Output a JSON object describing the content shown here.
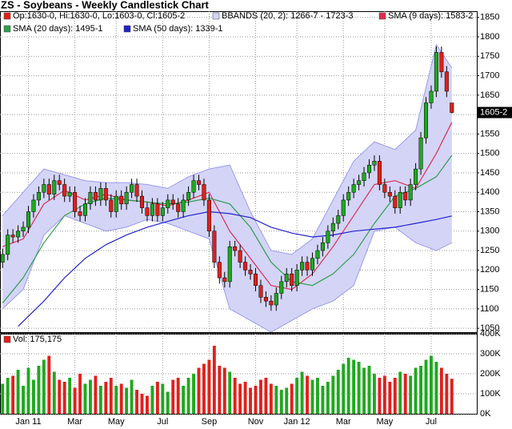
{
  "chart_data": [
    {
      "type": "candlestick",
      "title": "ZS - Soybeans - Weekly Candlestick Chart",
      "legend_ohlc": "Op:1630-0, Hi:1630-0, Lo:1603-0, Cl:1605-2",
      "legend_color": "#e0201b",
      "last_label": "1605-2",
      "up_color": "#1fa81f",
      "down_color": "#e0201b",
      "ylim": [
        1040,
        1866
      ],
      "yticks": [
        1050,
        1100,
        1150,
        1200,
        1250,
        1300,
        1350,
        1400,
        1450,
        1500,
        1550,
        1600,
        1650,
        1700,
        1750,
        1800,
        1850
      ],
      "grid": true,
      "open": [
        1220,
        1240,
        1290,
        1285,
        1300,
        1310,
        1350,
        1380,
        1400,
        1420,
        1395,
        1430,
        1420,
        1390,
        1400,
        1350,
        1340,
        1370,
        1400,
        1380,
        1410,
        1380,
        1350,
        1390,
        1370,
        1400,
        1420,
        1390,
        1360,
        1340,
        1370,
        1340,
        1360,
        1380,
        1370,
        1350,
        1380,
        1400,
        1430,
        1420,
        1380,
        1300,
        1220,
        1180,
        1170,
        1260,
        1250,
        1220,
        1200,
        1190,
        1160,
        1130,
        1120,
        1110,
        1140,
        1170,
        1190,
        1160,
        1200,
        1220,
        1200,
        1230,
        1250,
        1270,
        1300,
        1320,
        1340,
        1380,
        1400,
        1420,
        1430,
        1450,
        1470,
        1480,
        1420,
        1400,
        1390,
        1360,
        1400,
        1380,
        1420,
        1460,
        1540,
        1630,
        1660,
        1760,
        1710,
        1630
      ],
      "high": [
        1255,
        1305,
        1305,
        1315,
        1325,
        1365,
        1395,
        1415,
        1435,
        1435,
        1445,
        1445,
        1435,
        1415,
        1415,
        1365,
        1385,
        1415,
        1415,
        1425,
        1425,
        1395,
        1405,
        1405,
        1415,
        1435,
        1435,
        1405,
        1375,
        1385,
        1385,
        1375,
        1395,
        1395,
        1385,
        1395,
        1415,
        1445,
        1445,
        1435,
        1395,
        1315,
        1235,
        1195,
        1275,
        1275,
        1265,
        1235,
        1215,
        1205,
        1175,
        1145,
        1135,
        1155,
        1185,
        1205,
        1205,
        1215,
        1235,
        1235,
        1245,
        1265,
        1285,
        1315,
        1335,
        1355,
        1395,
        1415,
        1435,
        1445,
        1465,
        1485,
        1495,
        1495,
        1435,
        1415,
        1405,
        1415,
        1415,
        1435,
        1475,
        1555,
        1645,
        1675,
        1775,
        1775,
        1725,
        1630
      ],
      "low": [
        1205,
        1225,
        1270,
        1270,
        1285,
        1295,
        1335,
        1365,
        1385,
        1380,
        1380,
        1405,
        1375,
        1375,
        1335,
        1325,
        1325,
        1355,
        1365,
        1365,
        1365,
        1335,
        1335,
        1355,
        1355,
        1385,
        1375,
        1345,
        1325,
        1325,
        1325,
        1325,
        1345,
        1355,
        1335,
        1335,
        1365,
        1385,
        1405,
        1365,
        1285,
        1205,
        1165,
        1155,
        1155,
        1235,
        1205,
        1185,
        1175,
        1145,
        1115,
        1105,
        1095,
        1095,
        1125,
        1155,
        1145,
        1145,
        1185,
        1185,
        1185,
        1215,
        1235,
        1255,
        1285,
        1305,
        1325,
        1365,
        1385,
        1405,
        1415,
        1435,
        1455,
        1405,
        1385,
        1375,
        1345,
        1345,
        1365,
        1365,
        1405,
        1445,
        1525,
        1615,
        1645,
        1695,
        1645,
        1603
      ],
      "close": [
        1240,
        1290,
        1285,
        1300,
        1310,
        1350,
        1380,
        1400,
        1420,
        1395,
        1430,
        1420,
        1390,
        1400,
        1350,
        1340,
        1370,
        1400,
        1380,
        1410,
        1380,
        1350,
        1390,
        1370,
        1400,
        1420,
        1390,
        1360,
        1340,
        1370,
        1340,
        1360,
        1380,
        1370,
        1350,
        1380,
        1400,
        1430,
        1420,
        1380,
        1300,
        1220,
        1180,
        1170,
        1260,
        1250,
        1220,
        1200,
        1190,
        1160,
        1130,
        1120,
        1110,
        1140,
        1170,
        1190,
        1160,
        1200,
        1220,
        1200,
        1230,
        1250,
        1270,
        1300,
        1320,
        1340,
        1380,
        1400,
        1420,
        1430,
        1450,
        1470,
        1480,
        1420,
        1400,
        1390,
        1360,
        1400,
        1380,
        1420,
        1460,
        1540,
        1630,
        1660,
        1760,
        1710,
        1660,
        1605.25
      ],
      "bands": {
        "name": "BBANDS (20, 2): 1266-7 - 1723-3",
        "color": "#9a9aec",
        "fill": "#d4d4f7",
        "x": [
          0,
          4,
          8,
          12,
          16,
          20,
          24,
          28,
          32,
          36,
          40,
          44,
          48,
          52,
          56,
          60,
          64,
          68,
          72,
          76,
          80,
          84,
          87
        ],
        "upper": [
          1340,
          1400,
          1460,
          1445,
          1430,
          1425,
          1425,
          1420,
          1410,
          1440,
          1460,
          1470,
          1350,
          1250,
          1240,
          1280,
          1380,
          1480,
          1530,
          1510,
          1560,
          1780,
          1720
        ],
        "lower": [
          1100,
          1150,
          1290,
          1340,
          1320,
          1300,
          1310,
          1330,
          1320,
          1300,
          1280,
          1100,
          1070,
          1040,
          1070,
          1100,
          1120,
          1160,
          1300,
          1310,
          1270,
          1250,
          1270
        ]
      },
      "overlays": [
        {
          "name": "SMA (9 days): 1583-2",
          "color": "#d9304f",
          "x": [
            0,
            4,
            8,
            12,
            16,
            20,
            24,
            28,
            32,
            36,
            40,
            44,
            48,
            52,
            56,
            60,
            64,
            68,
            72,
            76,
            80,
            84,
            87
          ],
          "values": [
            1260,
            1280,
            1370,
            1405,
            1380,
            1395,
            1380,
            1375,
            1365,
            1380,
            1400,
            1300,
            1230,
            1160,
            1150,
            1190,
            1260,
            1340,
            1420,
            1430,
            1410,
            1500,
            1580
          ]
        },
        {
          "name": "SMA (20 days): 1495-1",
          "color": "#2e9e4e",
          "x": [
            0,
            4,
            8,
            12,
            16,
            20,
            24,
            28,
            32,
            36,
            40,
            44,
            48,
            52,
            56,
            60,
            64,
            68,
            72,
            76,
            80,
            84,
            87
          ],
          "values": [
            1115,
            1180,
            1270,
            1340,
            1370,
            1385,
            1380,
            1375,
            1370,
            1375,
            1385,
            1370,
            1310,
            1220,
            1170,
            1160,
            1190,
            1240,
            1320,
            1390,
            1410,
            1440,
            1495
          ]
        },
        {
          "name": "SMA (50 days): 1339-1",
          "color": "#2222cc",
          "x": [
            3,
            8,
            12,
            16,
            20,
            24,
            28,
            32,
            36,
            40,
            44,
            48,
            52,
            56,
            60,
            64,
            68,
            72,
            76,
            80,
            84,
            87
          ],
          "values": [
            1055,
            1120,
            1180,
            1230,
            1265,
            1290,
            1310,
            1325,
            1340,
            1350,
            1345,
            1335,
            1310,
            1295,
            1285,
            1290,
            1300,
            1305,
            1310,
            1320,
            1330,
            1339
          ]
        }
      ]
    },
    {
      "type": "bar",
      "legend": "Vol: 175,175",
      "legend_color": "#e0201b",
      "categories": [
        null,
        null,
        null,
        null,
        null,
        "Jan 11",
        null,
        null,
        null,
        null,
        null,
        null,
        null,
        null,
        "Mar",
        null,
        null,
        null,
        null,
        null,
        null,
        null,
        "May",
        null,
        null,
        null,
        null,
        null,
        null,
        null,
        null,
        "Jul",
        null,
        null,
        null,
        null,
        null,
        null,
        null,
        null,
        "Sep",
        null,
        null,
        null,
        null,
        null,
        null,
        null,
        null,
        "Nov",
        null,
        null,
        null,
        null,
        null,
        null,
        null,
        "Jan 12",
        null,
        null,
        null,
        null,
        null,
        null,
        null,
        null,
        "Mar",
        null,
        null,
        null,
        null,
        null,
        null,
        null,
        "May",
        null,
        null,
        null,
        null,
        null,
        null,
        null,
        null,
        "Jul",
        null,
        null,
        null,
        null
      ],
      "values": [
        150000,
        180000,
        190000,
        220000,
        140000,
        230000,
        170000,
        240000,
        270000,
        290000,
        210000,
        170000,
        160000,
        180000,
        130000,
        200000,
        150000,
        170000,
        190000,
        140000,
        160000,
        180000,
        140000,
        150000,
        130000,
        170000,
        120000,
        100000,
        90000,
        140000,
        160000,
        150000,
        110000,
        170000,
        180000,
        140000,
        180000,
        200000,
        230000,
        250000,
        270000,
        340000,
        240000,
        230000,
        210000,
        180000,
        150000,
        160000,
        130000,
        140000,
        170000,
        180000,
        150000,
        140000,
        120000,
        130000,
        150000,
        180000,
        210000,
        190000,
        170000,
        180000,
        140000,
        160000,
        190000,
        220000,
        250000,
        280000,
        270000,
        260000,
        230000,
        240000,
        200000,
        180000,
        190000,
        160000,
        180000,
        210000,
        200000,
        190000,
        230000,
        240000,
        270000,
        290000,
        260000,
        230000,
        200000,
        175175
      ],
      "ylim": [
        0,
        400000
      ],
      "yticks": [
        {
          "value": 0,
          "label": "0K"
        },
        {
          "value": 100000,
          "label": "100K"
        },
        {
          "value": 200000,
          "label": "200K"
        },
        {
          "value": 300000,
          "label": "300K"
        },
        {
          "value": 400000,
          "label": "400K"
        }
      ],
      "grid": true
    }
  ]
}
